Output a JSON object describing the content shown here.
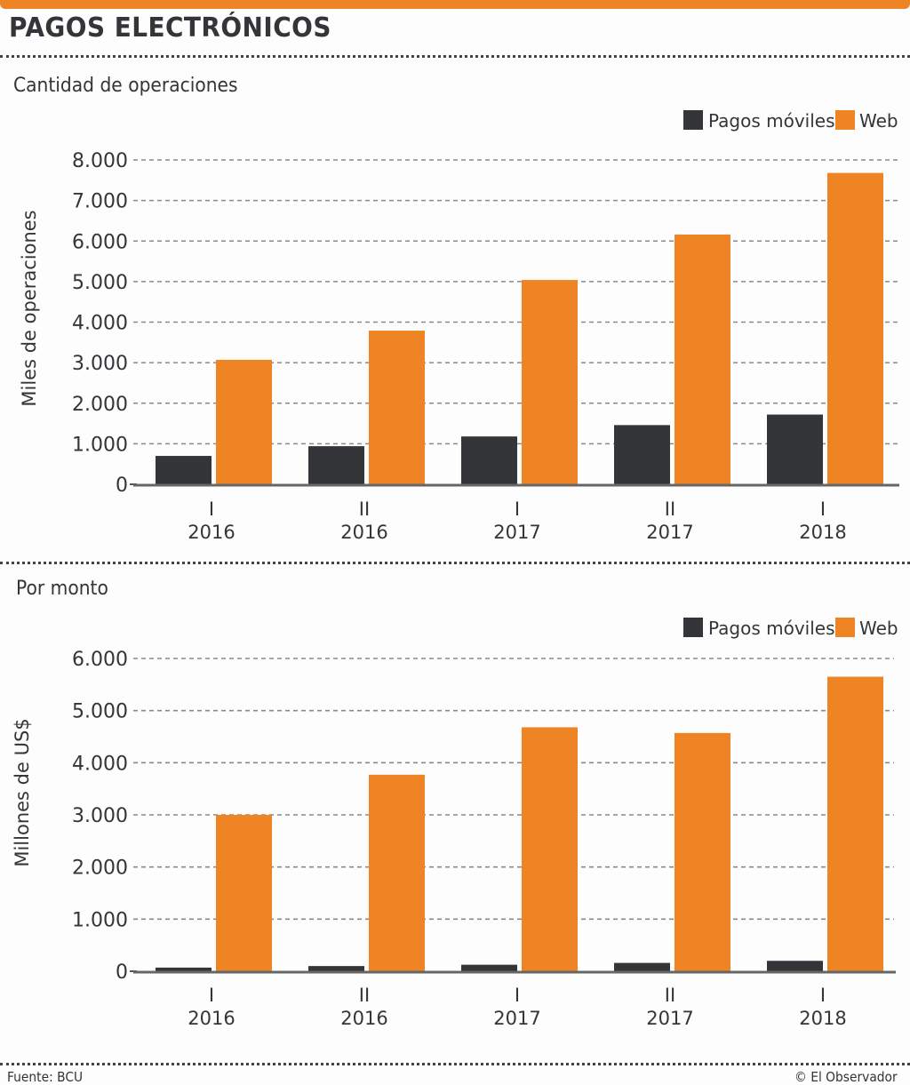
{
  "header": {
    "title": "PAGOS ELECTRÓNICOS"
  },
  "colors": {
    "accent": "#ef8424",
    "mobile": "#333538",
    "web": "#ef8424",
    "text": "#333538",
    "grid": "#8a8a8a"
  },
  "footer": {
    "source": "Fuente: BCU",
    "credit": "© El Observador"
  },
  "chart_data": [
    {
      "type": "bar",
      "title": "Cantidad de operaciones",
      "xlabel": "",
      "ylabel": "Miles de operaciones",
      "categories": [
        {
          "period": "I",
          "year": "2016"
        },
        {
          "period": "II",
          "year": "2016"
        },
        {
          "period": "I",
          "year": "2017"
        },
        {
          "period": "II",
          "year": "2017"
        },
        {
          "period": "I",
          "year": "2018"
        }
      ],
      "series": [
        {
          "name": "Pagos móviles",
          "color": "#333538",
          "values": [
            700,
            940,
            1180,
            1460,
            1720
          ]
        },
        {
          "name": "Web",
          "color": "#ef8424",
          "values": [
            3070,
            3790,
            5040,
            6160,
            7680
          ]
        }
      ],
      "ylim": [
        0,
        8000
      ],
      "yticks": [
        0,
        1000,
        2000,
        3000,
        4000,
        5000,
        6000,
        7000,
        8000
      ],
      "ytick_labels": [
        "0",
        "1.000",
        "2.000",
        "3.000",
        "4.000",
        "5.000",
        "6.000",
        "7.000",
        "8.000"
      ],
      "grid": true,
      "legend": "top-right"
    },
    {
      "type": "bar",
      "title": "Por monto",
      "xlabel": "",
      "ylabel": "Millones de US$",
      "categories": [
        {
          "period": "I",
          "year": "2016"
        },
        {
          "period": "II",
          "year": "2016"
        },
        {
          "period": "I",
          "year": "2017"
        },
        {
          "period": "II",
          "year": "2017"
        },
        {
          "period": "I",
          "year": "2018"
        }
      ],
      "series": [
        {
          "name": "Pagos móviles",
          "color": "#333538",
          "values": [
            70,
            100,
            125,
            160,
            200
          ]
        },
        {
          "name": "Web",
          "color": "#ef8424",
          "values": [
            3000,
            3770,
            4680,
            4570,
            5650
          ]
        }
      ],
      "ylim": [
        0,
        6000
      ],
      "yticks": [
        0,
        1000,
        2000,
        3000,
        4000,
        5000,
        6000
      ],
      "ytick_labels": [
        "0",
        "1.000",
        "2.000",
        "3.000",
        "4.000",
        "5.000",
        "6.000"
      ],
      "grid": true,
      "legend": "top-right"
    }
  ]
}
